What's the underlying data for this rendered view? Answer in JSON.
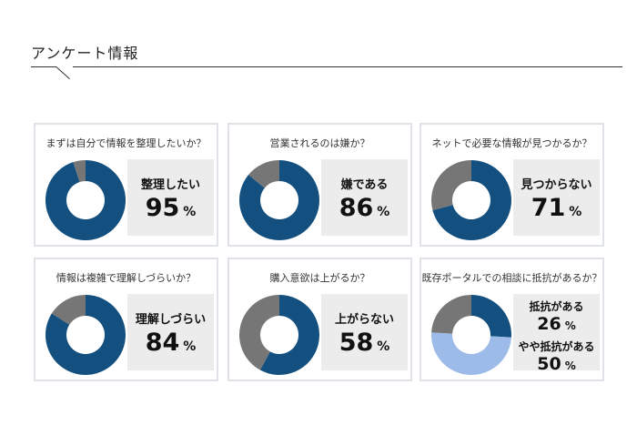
{
  "header": {
    "title": "アンケート情報"
  },
  "colors": {
    "primary": "#14507f",
    "rest": "#767676",
    "secondary": "#9dbbe8"
  },
  "cards": [
    {
      "question": "まずは自分で情報を整理したいか？",
      "label": "整理したい",
      "value": 95,
      "unit": "%"
    },
    {
      "question": "営業されるのは嫌か？",
      "label": "嫌である",
      "value": 86,
      "unit": "%"
    },
    {
      "question": "ネットで必要な情報が見つかるか？",
      "label": "見つからない",
      "value": 71,
      "unit": "%"
    },
    {
      "question": "情報は複雑で理解しづらいか？",
      "label": "理解しづらい",
      "value": 84,
      "unit": "%"
    },
    {
      "question": "購入意欲は上がるか？",
      "label": "上がらない",
      "value": 58,
      "unit": "%"
    },
    {
      "question": "既存ポータルでの相談に抵抗があるか？",
      "label": "抵抗がある",
      "value": 26,
      "unit": "%",
      "label2": "やや抵抗がある",
      "value2": 50,
      "unit2": "%"
    }
  ]
}
